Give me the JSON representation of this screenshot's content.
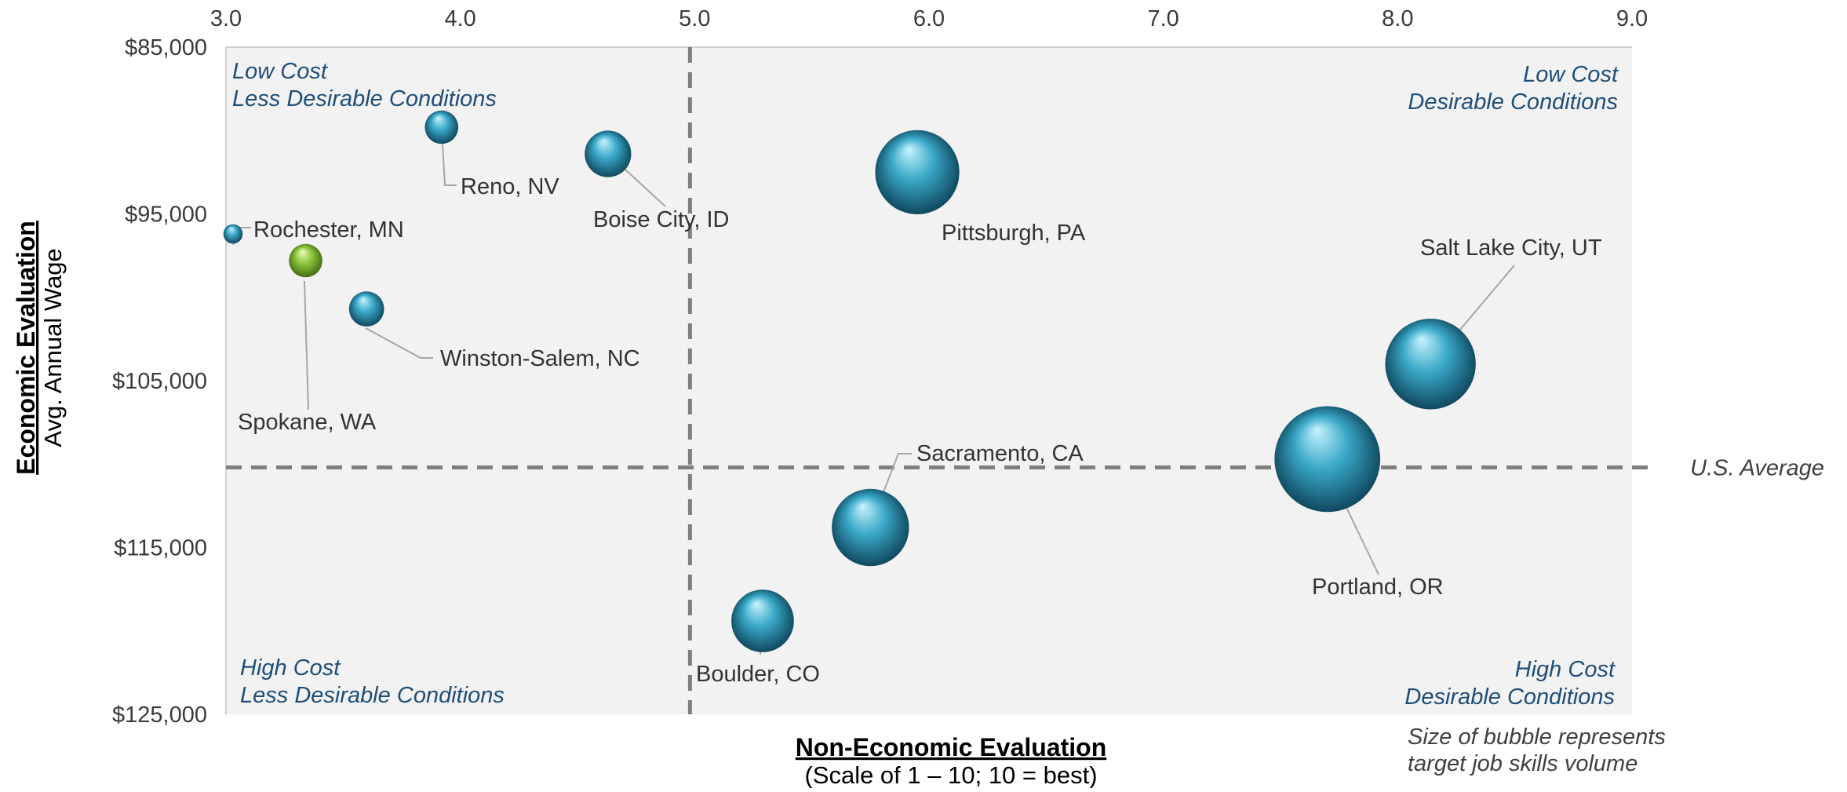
{
  "chart_data": {
    "type": "scatter",
    "xlabel": "Non-Economic Evaluation",
    "xlabel_sub": "(Scale of 1 – 10; 10 = best)",
    "ylabel": "Economic Evaluation",
    "ylabel_sub": "Avg. Annual Wage",
    "xlim": [
      3.0,
      9.0
    ],
    "ylim": [
      85000,
      125000
    ],
    "y_reversed": true,
    "x_axis_position": "top",
    "x_ticks": [
      {
        "value": 3.0,
        "label": "3.0"
      },
      {
        "value": 4.0,
        "label": "4.0"
      },
      {
        "value": 5.0,
        "label": "5.0"
      },
      {
        "value": 6.0,
        "label": "6.0"
      },
      {
        "value": 7.0,
        "label": "7.0"
      },
      {
        "value": 8.0,
        "label": "8.0"
      },
      {
        "value": 9.0,
        "label": "9.0"
      }
    ],
    "y_ticks": [
      {
        "value": 85000,
        "label": "$85,000"
      },
      {
        "value": 95000,
        "label": "$95,000"
      },
      {
        "value": 105000,
        "label": "$105,000"
      },
      {
        "value": 115000,
        "label": "$115,000"
      },
      {
        "value": 125000,
        "label": "$125,000"
      }
    ],
    "reference_lines": {
      "vertical_x": 4.98,
      "horizontal_y": 110200,
      "horizontal_label": "U.S. Average"
    },
    "quadrant_labels": {
      "top_left": [
        "Low Cost",
        "Less Desirable Conditions"
      ],
      "top_right": [
        "Low Cost",
        "Desirable Conditions"
      ],
      "bottom_left": [
        "High Cost",
        "Less Desirable Conditions"
      ],
      "bottom_right": [
        "High Cost",
        "Desirable Conditions"
      ]
    },
    "size_note": [
      "Size of bubble represents",
      "target job skills volume"
    ],
    "points": [
      {
        "label": "Rochester, MN",
        "x": 3.03,
        "y": 96200,
        "size": 1.0,
        "color": "#3aa8c8"
      },
      {
        "label": "Spokane, WA",
        "x": 3.34,
        "y": 97800,
        "size": 3.0,
        "color": "#8cc63f"
      },
      {
        "label": "Reno, NV",
        "x": 3.92,
        "y": 89800,
        "size": 3.0,
        "color": "#3aa8c8"
      },
      {
        "label": "Winston-Salem, NC",
        "x": 3.6,
        "y": 100700,
        "size": 3.3,
        "color": "#3aa8c8"
      },
      {
        "label": "Boise City, ID",
        "x": 4.63,
        "y": 91400,
        "size": 5.8,
        "color": "#3aa8c8"
      },
      {
        "label": "Pittsburgh, PA",
        "x": 5.95,
        "y": 92500,
        "size": 19.0,
        "color": "#3aa8c8"
      },
      {
        "label": "Sacramento, CA",
        "x": 5.75,
        "y": 113800,
        "size": 16.0,
        "color": "#3aa8c8"
      },
      {
        "label": "Boulder, CO",
        "x": 5.29,
        "y": 119400,
        "size": 10.5,
        "color": "#3aa8c8"
      },
      {
        "label": "Salt Lake City, UT",
        "x": 8.14,
        "y": 104000,
        "size": 22.0,
        "color": "#3aa8c8"
      },
      {
        "label": "Portland, OR",
        "x": 7.7,
        "y": 109700,
        "size": 30.0,
        "color": "#3aa8c8"
      }
    ],
    "grid": false,
    "colors": {
      "plot_bg": "#f2f2f2",
      "reference_line": "#7f7f7f",
      "quadrant_text": "#1f4e79",
      "bubble_primary": "#3aa8c8",
      "bubble_highlight": "#8cc63f"
    }
  }
}
